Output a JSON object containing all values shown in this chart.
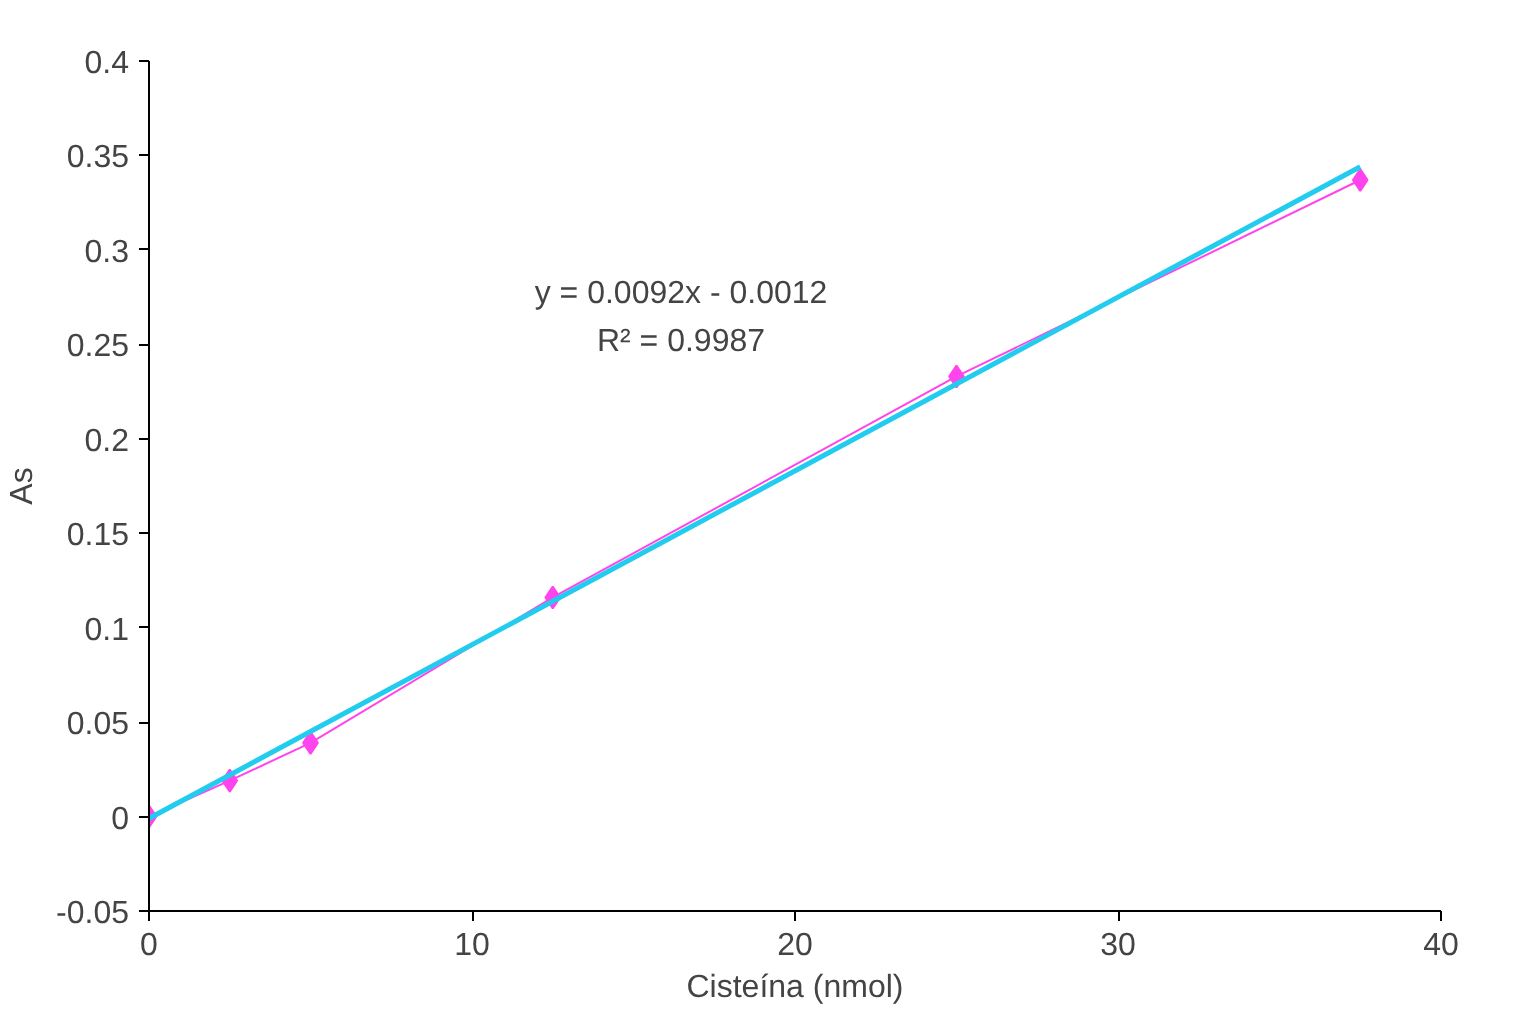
{
  "chart_data": {
    "type": "line",
    "xlabel": "Cisteína (nmol)",
    "ylabel": "As",
    "xlim": [
      0,
      40
    ],
    "xticks": [
      0,
      10,
      20,
      30,
      40
    ],
    "ylim": [
      -0.05,
      0.4
    ],
    "yticks": [
      -0.05,
      0,
      0.05,
      0.1,
      0.15,
      0.2,
      0.25,
      0.3,
      0.35,
      0.4
    ],
    "grid": false,
    "marker": "diamond",
    "line_style": "solid",
    "x": [
      0,
      2.5,
      5,
      12.5,
      25,
      37.5
    ],
    "series": [
      {
        "color": "#ff44ee",
        "values": [
          0,
          0.019,
          0.039,
          0.116,
          0.233,
          0.337
        ]
      },
      {
        "type": "line",
        "marker": "none",
        "color": "#22ccee",
        "x": [
          0,
          37.5
        ],
        "values": [
          -0.001,
          0.344
        ]
      }
    ],
    "annotations": [
      "y = 0.0092x - 0.0012",
      "R² = 0.9987"
    ]
  }
}
